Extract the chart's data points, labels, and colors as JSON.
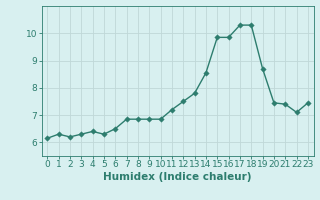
{
  "x": [
    0,
    1,
    2,
    3,
    4,
    5,
    6,
    7,
    8,
    9,
    10,
    11,
    12,
    13,
    14,
    15,
    16,
    17,
    18,
    19,
    20,
    21,
    22,
    23
  ],
  "y": [
    6.15,
    6.3,
    6.2,
    6.3,
    6.4,
    6.3,
    6.5,
    6.85,
    6.85,
    6.85,
    6.85,
    7.2,
    7.5,
    7.8,
    8.55,
    9.85,
    9.85,
    10.3,
    10.3,
    8.7,
    7.45,
    7.4,
    7.1,
    7.45
  ],
  "line_color": "#2d7d6e",
  "marker_color": "#2d7d6e",
  "bg_color": "#d8f0f0",
  "grid_color": "#c0d8d8",
  "xlabel": "Humidex (Indice chaleur)",
  "ylim": [
    5.5,
    11.0
  ],
  "xlim": [
    -0.5,
    23.5
  ],
  "yticks": [
    6,
    7,
    8,
    9,
    10
  ],
  "xticks": [
    0,
    1,
    2,
    3,
    4,
    5,
    6,
    7,
    8,
    9,
    10,
    11,
    12,
    13,
    14,
    15,
    16,
    17,
    18,
    19,
    20,
    21,
    22,
    23
  ],
  "tick_color": "#2d7d6e",
  "label_color": "#2d7d6e",
  "font_size_ticks": 6.5,
  "font_size_label": 7.5,
  "linewidth": 1.0,
  "markersize": 2.8
}
